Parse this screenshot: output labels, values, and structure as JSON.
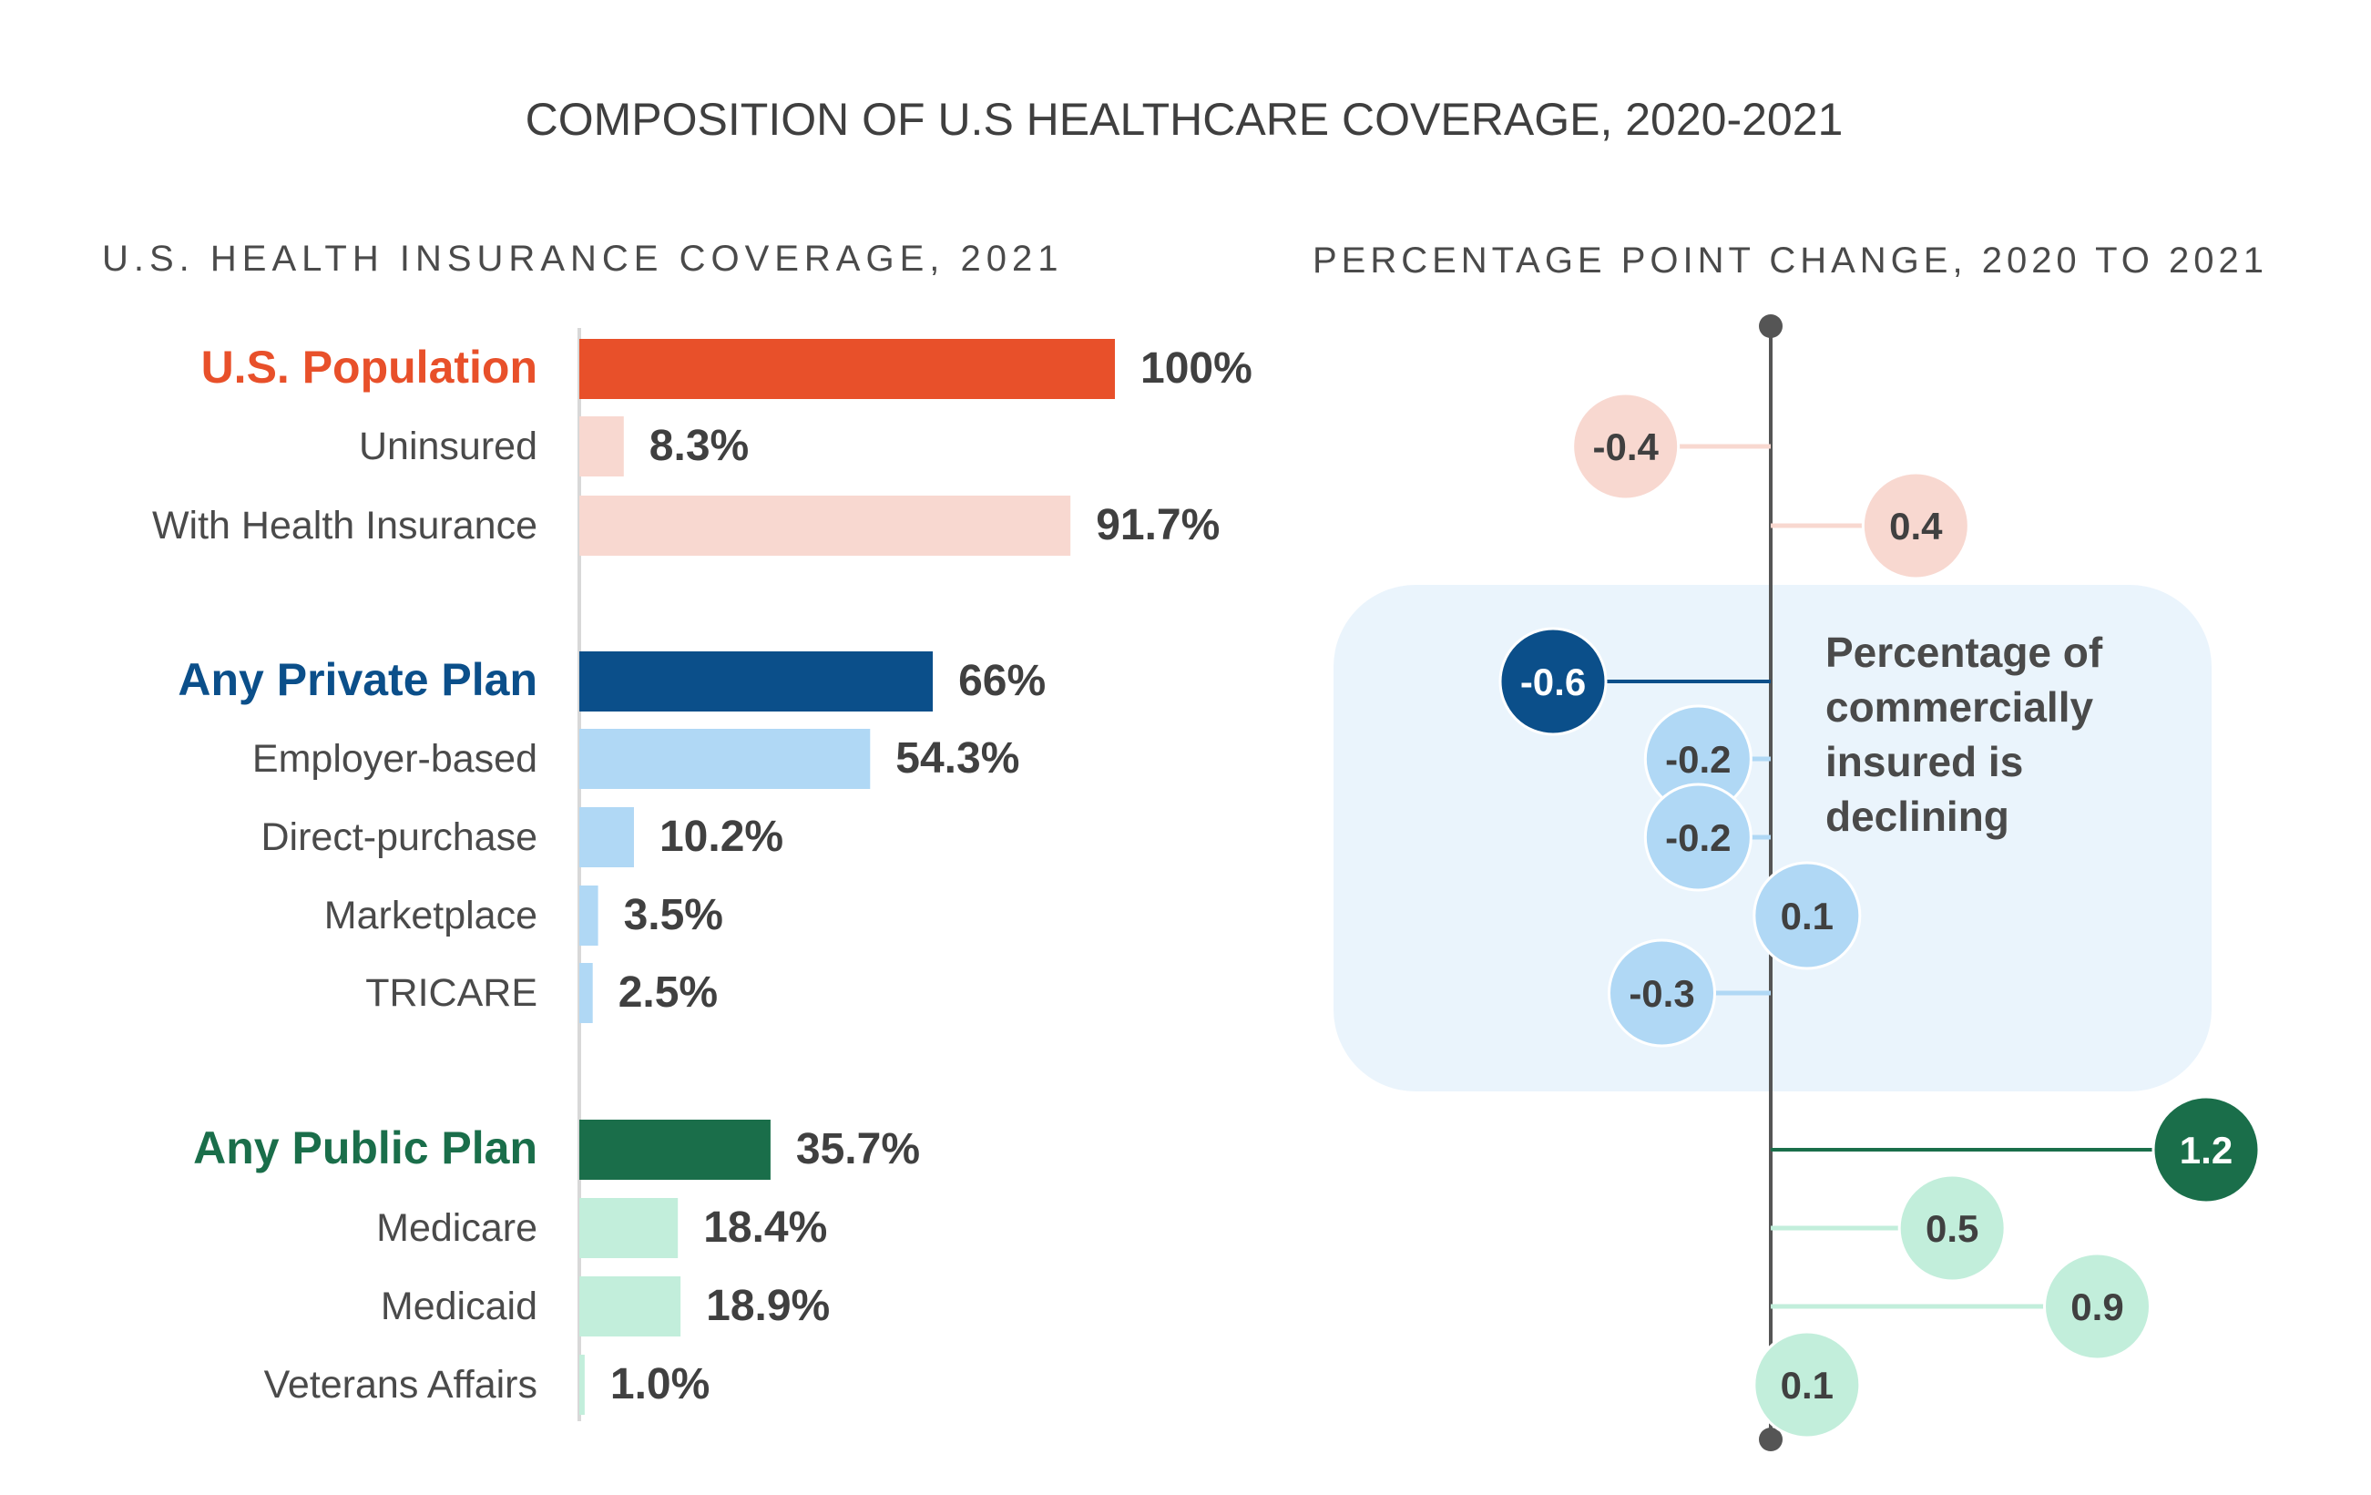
{
  "title": "COMPOSITION OF U.S HEALTHCARE COVERAGE, 2020-2021",
  "colors": {
    "background": "#ffffff",
    "text_title": "#3f3f3f",
    "text_subtitle": "#4a4a4a",
    "text_label": "#4a4a4a",
    "value_label": "#404040",
    "axis": "#d8d8d8",
    "axis_line": "#555555",
    "highlight_box": "#eaf4fc",
    "population_dark": "#e8502a",
    "population_light": "#f8d8d0",
    "private_dark": "#0b4f8a",
    "private_light": "#b0d8f5",
    "public_dark": "#1a6e4a",
    "public_light": "#c2eedb"
  },
  "chart_data": [
    {
      "type": "bar",
      "orientation": "horizontal",
      "title": "U.S. HEALTH INSURANCE COVERAGE, 2021",
      "xlim": [
        0,
        100
      ],
      "grid": false,
      "groups": [
        {
          "name": "U.S. Population",
          "color_key": "population",
          "rows": [
            {
              "label": "U.S. Population",
              "value": 100,
              "value_label": "100%",
              "header": true
            },
            {
              "label": "Uninsured",
              "value": 8.3,
              "value_label": "8.3%",
              "header": false
            },
            {
              "label": "With Health Insurance",
              "value": 91.7,
              "value_label": "91.7%",
              "header": false
            }
          ]
        },
        {
          "name": "Any Private Plan",
          "color_key": "private",
          "rows": [
            {
              "label": "Any Private Plan",
              "value": 66,
              "value_label": "66%",
              "header": true
            },
            {
              "label": "Employer-based",
              "value": 54.3,
              "value_label": "54.3%",
              "header": false
            },
            {
              "label": "Direct-purchase",
              "value": 10.2,
              "value_label": "10.2%",
              "header": false
            },
            {
              "label": "Marketplace",
              "value": 3.5,
              "value_label": "3.5%",
              "header": false
            },
            {
              "label": "TRICARE",
              "value": 2.5,
              "value_label": "2.5%",
              "header": false
            }
          ]
        },
        {
          "name": "Any Public Plan",
          "color_key": "public",
          "rows": [
            {
              "label": "Any Public Plan",
              "value": 35.7,
              "value_label": "35.7%",
              "header": true
            },
            {
              "label": "Medicare",
              "value": 18.4,
              "value_label": "18.4%",
              "header": false
            },
            {
              "label": "Medicaid",
              "value": 18.9,
              "value_label": "18.9%",
              "header": false
            },
            {
              "label": "Veterans Affairs",
              "value": 1.0,
              "value_label": "1.0%",
              "header": false
            }
          ]
        }
      ]
    },
    {
      "type": "scatter",
      "subtype": "lollipop",
      "title": "PERCENTAGE POINT CHANGE, 2020 TO 2021",
      "zero_line": 0,
      "xlim": [
        -0.6,
        1.2
      ],
      "annotation": "Percentage of commercially insured is declining",
      "categories": [
        "U.S. Population",
        "Uninsured",
        "With Health Insurance",
        "Any Private Plan",
        "Employer-based",
        "Direct-purchase",
        "Marketplace",
        "TRICARE",
        "Any Public Plan",
        "Medicare",
        "Medicaid",
        "Veterans Affairs"
      ],
      "points": [
        {
          "category": "Uninsured",
          "value": -0.4,
          "label": "-0.4",
          "color_key": "population",
          "header": false
        },
        {
          "category": "With Health Insurance",
          "value": 0.4,
          "label": "0.4",
          "color_key": "population",
          "header": false
        },
        {
          "category": "Any Private Plan",
          "value": -0.6,
          "label": "-0.6",
          "color_key": "private",
          "header": true
        },
        {
          "category": "Employer-based",
          "value": -0.2,
          "label": "-0.2",
          "color_key": "private",
          "header": false
        },
        {
          "category": "Direct-purchase",
          "value": -0.2,
          "label": "-0.2",
          "color_key": "private",
          "header": false
        },
        {
          "category": "Marketplace",
          "value": 0.1,
          "label": "0.1",
          "color_key": "private",
          "header": false
        },
        {
          "category": "TRICARE",
          "value": -0.3,
          "label": "-0.3",
          "color_key": "private",
          "header": false
        },
        {
          "category": "Any Public Plan",
          "value": 1.2,
          "label": "1.2",
          "color_key": "public",
          "header": true
        },
        {
          "category": "Medicare",
          "value": 0.5,
          "label": "0.5",
          "color_key": "public",
          "header": false
        },
        {
          "category": "Medicaid",
          "value": 0.9,
          "label": "0.9",
          "color_key": "public",
          "header": false
        },
        {
          "category": "Veterans Affairs",
          "value": 0.1,
          "label": "0.1",
          "color_key": "public",
          "header": false
        }
      ]
    }
  ]
}
